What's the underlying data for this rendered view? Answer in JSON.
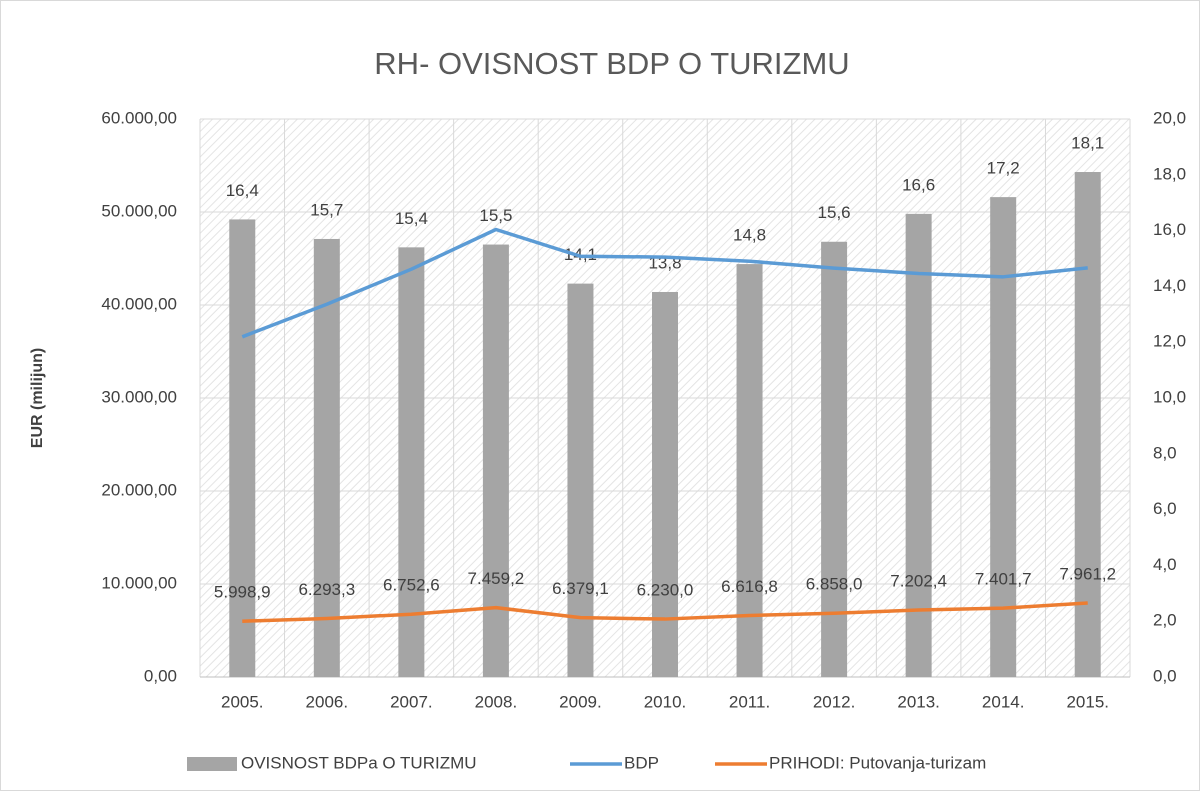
{
  "chart_data": {
    "type": "bar",
    "title": "RH- OVISNOST BDP O TURIZMU",
    "y_label": "EUR (milijun)",
    "categories": [
      "2005.",
      "2006.",
      "2007.",
      "2008.",
      "2009.",
      "2010.",
      "2011.",
      "2012.",
      "2013.",
      "2014.",
      "2015."
    ],
    "series": [
      {
        "name": "OVISNOST BDPa O TURIZMU",
        "type": "bar",
        "axis": "y2",
        "color": "#a5a5a5",
        "values": [
          16.4,
          15.7,
          15.4,
          15.5,
          14.1,
          13.8,
          14.8,
          15.6,
          16.6,
          17.2,
          18.1
        ],
        "value_labels": [
          "16,4",
          "15,7",
          "15,4",
          "15,5",
          "14,1",
          "13,8",
          "14,8",
          "15,6",
          "16,6",
          "17,2",
          "18,1"
        ]
      },
      {
        "name": "BDP",
        "type": "line",
        "axis": "y",
        "color": "#5b9bd5",
        "values": [
          36580,
          40080,
          43850,
          48120,
          45240,
          45150,
          44710,
          43960,
          43390,
          43030,
          43990
        ]
      },
      {
        "name": "PRIHODI: Putovanja-turizam",
        "type": "line",
        "axis": "y",
        "color": "#ed7d31",
        "values": [
          5998.9,
          6293.3,
          6752.6,
          7459.2,
          6379.1,
          6230.0,
          6616.8,
          6858.0,
          7202.4,
          7401.7,
          7961.2
        ],
        "value_labels": [
          "5.998,9",
          "6.293,3",
          "6.752,6",
          "7.459,2",
          "6.379,1",
          "6.230,0",
          "6.616,8",
          "6.858,0",
          "7.202,4",
          "7.401,7",
          "7.961,2"
        ]
      }
    ],
    "ylim": [
      0,
      60000
    ],
    "yticks": [
      {
        "value": 0,
        "label": "0,00"
      },
      {
        "value": 10000,
        "label": "10.000,00"
      },
      {
        "value": 20000,
        "label": "20.000,00"
      },
      {
        "value": 30000,
        "label": "30.000,00"
      },
      {
        "value": 40000,
        "label": "40.000,00"
      },
      {
        "value": 50000,
        "label": "50.000,00"
      },
      {
        "value": 60000,
        "label": "60.000,00"
      }
    ],
    "y2lim": [
      0,
      20
    ],
    "y2ticks": [
      {
        "value": 0,
        "label": "0,0"
      },
      {
        "value": 2,
        "label": "2,0"
      },
      {
        "value": 4,
        "label": "4,0"
      },
      {
        "value": 6,
        "label": "6,0"
      },
      {
        "value": 8,
        "label": "8,0"
      },
      {
        "value": 10,
        "label": "10,0"
      },
      {
        "value": 12,
        "label": "12,0"
      },
      {
        "value": 14,
        "label": "14,0"
      },
      {
        "value": 16,
        "label": "16,0"
      },
      {
        "value": 18,
        "label": "18,0"
      },
      {
        "value": 20,
        "label": "20,0"
      }
    ],
    "grid": true,
    "legend": "bottom"
  }
}
